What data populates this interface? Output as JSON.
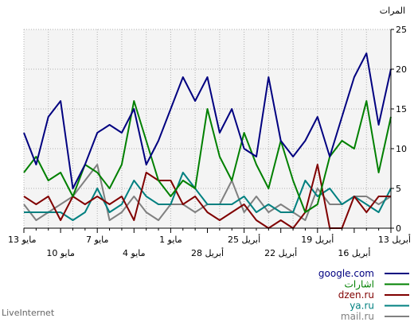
{
  "chart_data": {
    "type": "line",
    "ylabel": "المرات",
    "ylim": [
      0,
      25
    ],
    "yticks": [
      0,
      5,
      10,
      15,
      20,
      25
    ],
    "grid": true,
    "legend_position": "bottom-right",
    "x_upper_labels": [
      "13 مايو",
      "7 مايو",
      "1 مايو",
      "25 أبريل",
      "19 أبريل",
      "13 أبريل"
    ],
    "x_lower_labels": [
      "10 مايو",
      "4 مايو",
      "28 أبريل",
      "22 أبريل",
      "16 أبريل"
    ],
    "series": [
      {
        "name": "google.com",
        "color": "#000080",
        "values": [
          12,
          8,
          14,
          16,
          5,
          8,
          12,
          13,
          12,
          15,
          8,
          11,
          15,
          19,
          16,
          19,
          12,
          15,
          10,
          9,
          19,
          11,
          9,
          11,
          14,
          9,
          14,
          19,
          22,
          13,
          20
        ]
      },
      {
        "name": "اشارات",
        "color": "#008000",
        "values": [
          7,
          9,
          6,
          7,
          4,
          8,
          7,
          5,
          8,
          16,
          11,
          6,
          4,
          6,
          5,
          15,
          9,
          6,
          12,
          8,
          5,
          11,
          6,
          2,
          3,
          9,
          11,
          10,
          16,
          7,
          14
        ]
      },
      {
        "name": "dzen.ru",
        "color": "#800000",
        "values": [
          4,
          3,
          4,
          1,
          4,
          3,
          4,
          3,
          4,
          1,
          7,
          6,
          6,
          3,
          4,
          2,
          1,
          2,
          3,
          1,
          0,
          1,
          0,
          2,
          8,
          0,
          0,
          4,
          2,
          4,
          4
        ]
      },
      {
        "name": "ya.ru",
        "color": "#008080",
        "values": [
          2,
          2,
          2,
          2,
          1,
          2,
          5,
          2,
          3,
          6,
          4,
          3,
          3,
          7,
          5,
          3,
          3,
          3,
          4,
          2,
          3,
          2,
          2,
          6,
          4,
          5,
          3,
          4,
          3,
          2,
          5
        ]
      },
      {
        "name": "mail.ru",
        "color": "#808080",
        "values": [
          3,
          1,
          2,
          3,
          4,
          6,
          8,
          1,
          2,
          4,
          2,
          1,
          3,
          3,
          2,
          3,
          3,
          6,
          2,
          4,
          2,
          3,
          2,
          1,
          5,
          3,
          3,
          4,
          4,
          3,
          4
        ]
      }
    ]
  },
  "footer": "LiveInternet"
}
